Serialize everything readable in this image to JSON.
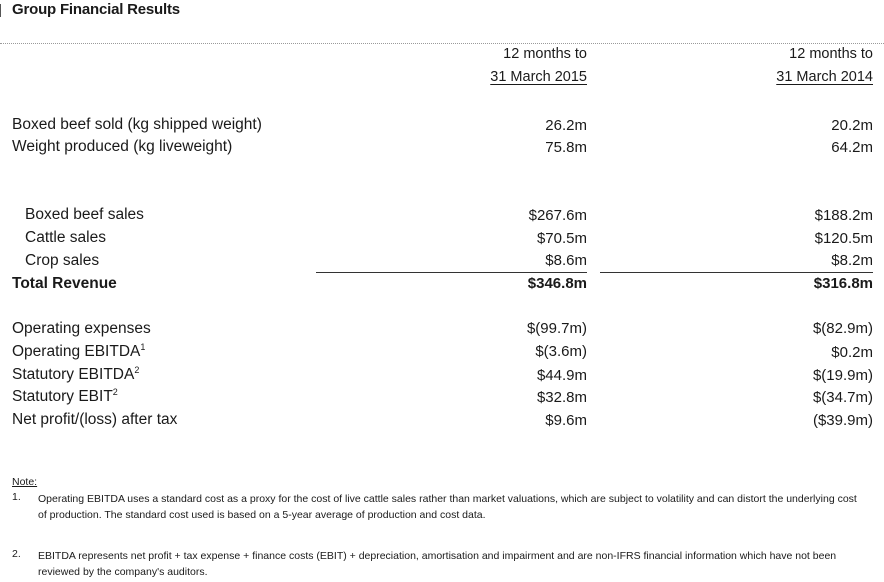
{
  "title": "Group Financial Results",
  "columns": [
    {
      "line1": "12 months to",
      "line2": "31 March 2015"
    },
    {
      "line1": "12 months to",
      "line2": "31 March 2014"
    }
  ],
  "volume_rows": [
    {
      "label": "Boxed beef sold (kg shipped weight)",
      "v2015": "26.2m",
      "v2014": "20.2m"
    },
    {
      "label": "Weight produced (kg liveweight)",
      "v2015": "75.8m",
      "v2014": "64.2m"
    }
  ],
  "revenue_rows": [
    {
      "label": "Boxed beef sales",
      "v2015": "$267.6m",
      "v2014": "$188.2m"
    },
    {
      "label": "Cattle sales",
      "v2015": "$70.5m",
      "v2014": "$120.5m"
    },
    {
      "label": "Crop sales",
      "v2015": "$8.6m",
      "v2014": "$8.2m"
    }
  ],
  "total_revenue": {
    "label": "Total Revenue",
    "v2015": "$346.8m",
    "v2014": "$316.8m"
  },
  "earnings_rows": [
    {
      "label": "Operating expenses",
      "sup": "",
      "v2015": "$(99.7m)",
      "v2014": "$(82.9m)"
    },
    {
      "label": "Operating EBITDA",
      "sup": "1",
      "v2015": "$(3.6m)",
      "v2014": "$0.2m"
    },
    {
      "label": "Statutory EBITDA",
      "sup": "2",
      "v2015": "$44.9m",
      "v2014": "$(19.9m)"
    },
    {
      "label": "Statutory EBIT",
      "sup": "2",
      "v2015": "$32.8m",
      "v2014": "$(34.7m)"
    },
    {
      "label": "Net profit/(loss) after tax",
      "sup": "",
      "v2015": "$9.6m",
      "v2014": "($39.9m)"
    }
  ],
  "notes": {
    "heading": "Note:",
    "items": [
      {
        "num": "1.",
        "text": "Operating EBITDA uses a standard cost as a proxy for the cost of live cattle sales rather than market valuations, which are subject to volatility and can distort the underlying cost of production. The standard cost used is based on a 5-year average of production and cost data."
      },
      {
        "num": "2.",
        "text": "EBITDA represents net profit + tax expense + finance costs (EBIT) + depreciation, amortisation and impairment and are non-IFRS financial information which have not been reviewed by the company's auditors."
      }
    ]
  }
}
